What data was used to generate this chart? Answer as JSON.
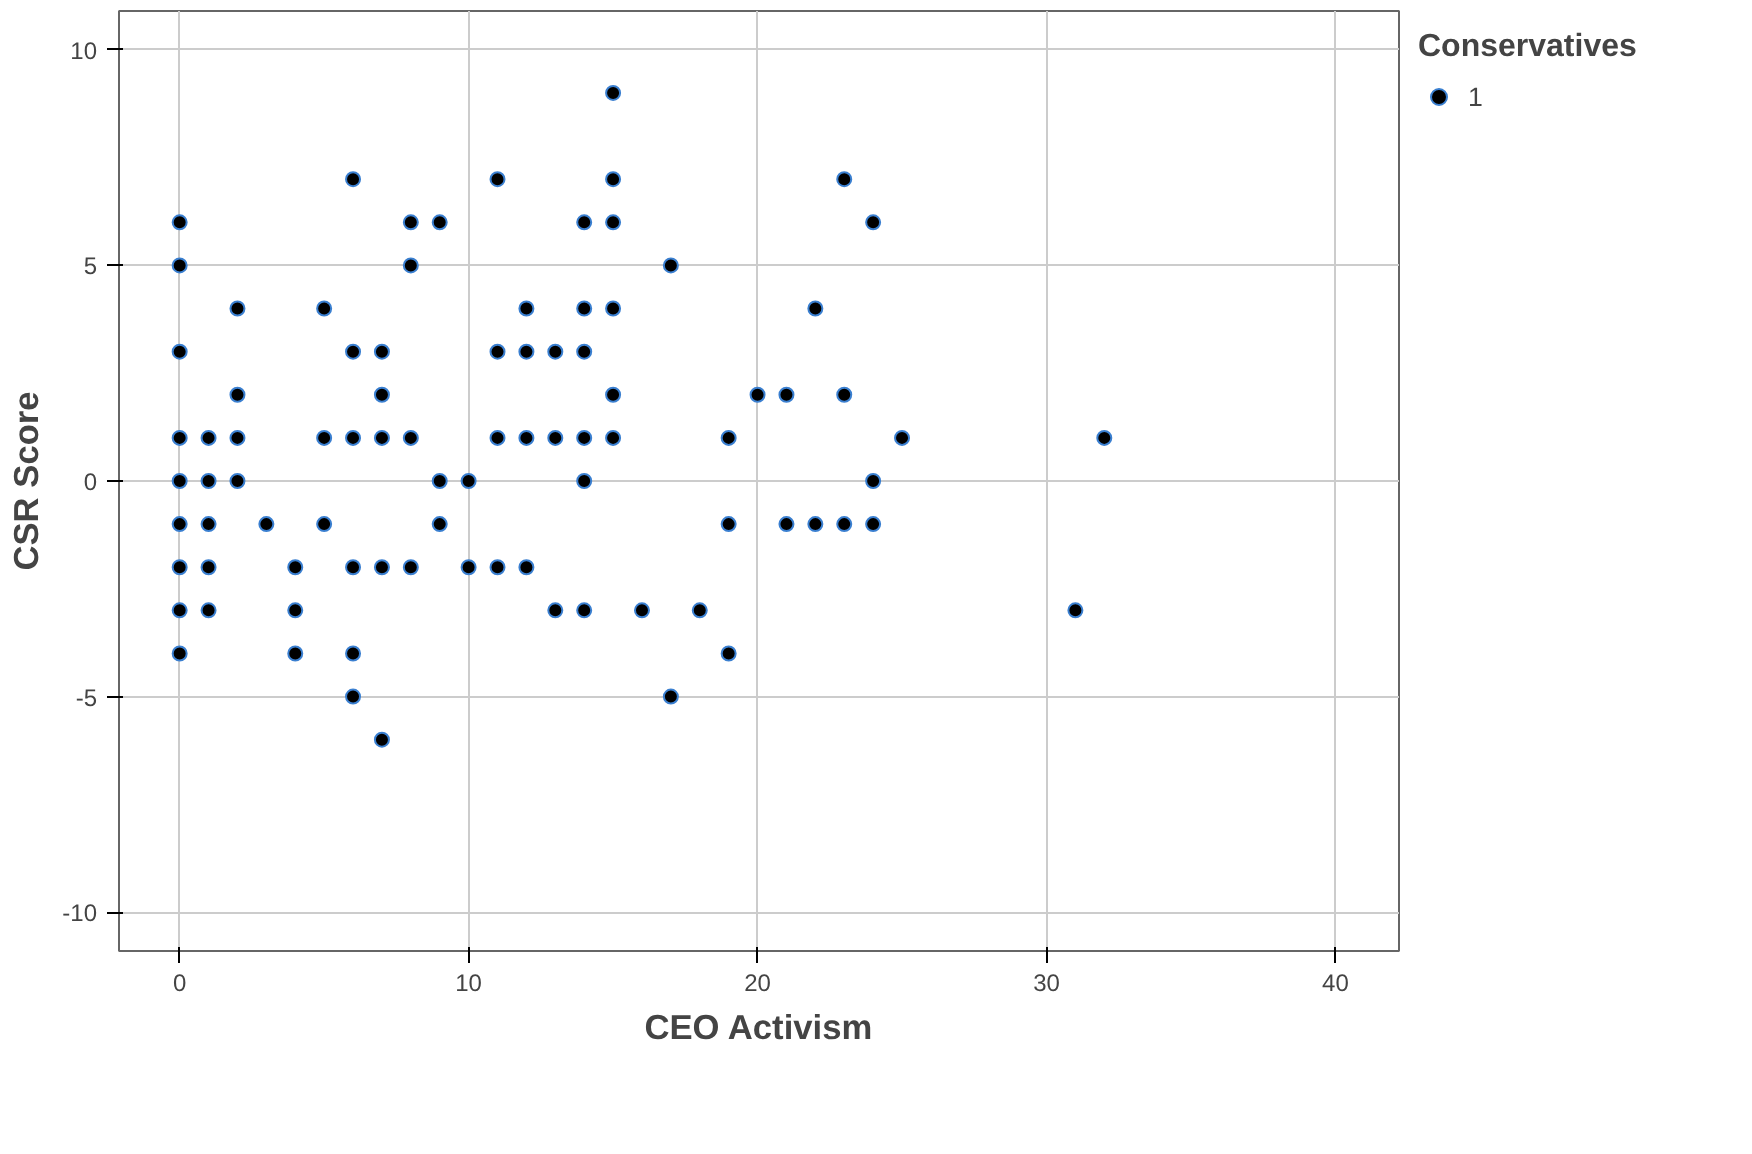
{
  "chart_data": {
    "type": "scatter",
    "xlabel": "CEO Activism",
    "ylabel": "CSR Score",
    "legend_title": "Conservatives",
    "legend": "top right",
    "marker": "circle",
    "grid": true,
    "xlim": [
      -2.1,
      42.2
    ],
    "ylim": [
      -10.9,
      10.9
    ],
    "xticks": [
      0,
      10,
      20,
      30,
      40
    ],
    "yticks": [
      -10,
      -5,
      0,
      5,
      10
    ],
    "series": [
      {
        "name": "1",
        "color": "#000000",
        "x": [
          0,
          0,
          0,
          0,
          0,
          0,
          0,
          0,
          0,
          1,
          1,
          1,
          1,
          1,
          2,
          2,
          2,
          2,
          3,
          4,
          4,
          4,
          5,
          5,
          5,
          6,
          6,
          6,
          6,
          6,
          6,
          7,
          7,
          7,
          7,
          7,
          8,
          8,
          8,
          8,
          9,
          9,
          9,
          10,
          10,
          11,
          11,
          11,
          11,
          12,
          12,
          12,
          12,
          13,
          13,
          13,
          14,
          14,
          14,
          14,
          14,
          14,
          15,
          15,
          15,
          15,
          15,
          15,
          16,
          17,
          17,
          18,
          19,
          19,
          19,
          20,
          21,
          21,
          22,
          22,
          23,
          23,
          23,
          24,
          24,
          24,
          25,
          31,
          32
        ],
        "values": [
          6,
          5,
          3,
          1,
          0,
          -1,
          -2,
          -3,
          -4,
          1,
          0,
          -1,
          -2,
          -3,
          4,
          2,
          1,
          0,
          -1,
          -2,
          -3,
          -4,
          4,
          1,
          -1,
          7,
          3,
          1,
          -2,
          -4,
          -5,
          3,
          2,
          1,
          -2,
          -6,
          6,
          5,
          1,
          -2,
          6,
          0,
          -1,
          0,
          -2,
          7,
          3,
          1,
          -2,
          4,
          3,
          1,
          -2,
          3,
          1,
          -3,
          6,
          4,
          3,
          1,
          0,
          -3,
          9,
          7,
          6,
          4,
          2,
          1,
          -3,
          5,
          -5,
          -3,
          1,
          -1,
          -4,
          2,
          2,
          -1,
          4,
          -1,
          7,
          2,
          -1,
          6,
          0,
          -1,
          1,
          -3,
          1
        ]
      }
    ]
  }
}
